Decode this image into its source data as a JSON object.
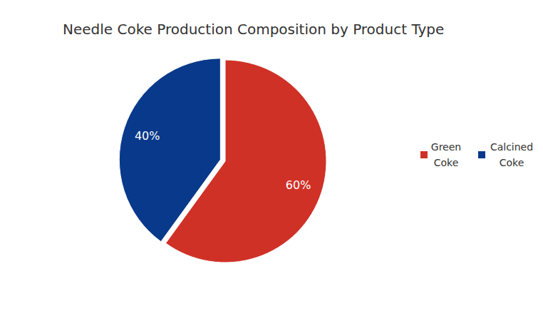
{
  "chart_data": {
    "type": "pie",
    "title": "Needle Coke Production Composition by Product Type",
    "categories": [
      "Green Coke",
      "Calcined Coke"
    ],
    "values": [
      60,
      40
    ],
    "value_labels": [
      "60%",
      "40%"
    ],
    "colors": [
      "#d03127",
      "#08398a"
    ],
    "data_labels": true,
    "legend": "right"
  }
}
